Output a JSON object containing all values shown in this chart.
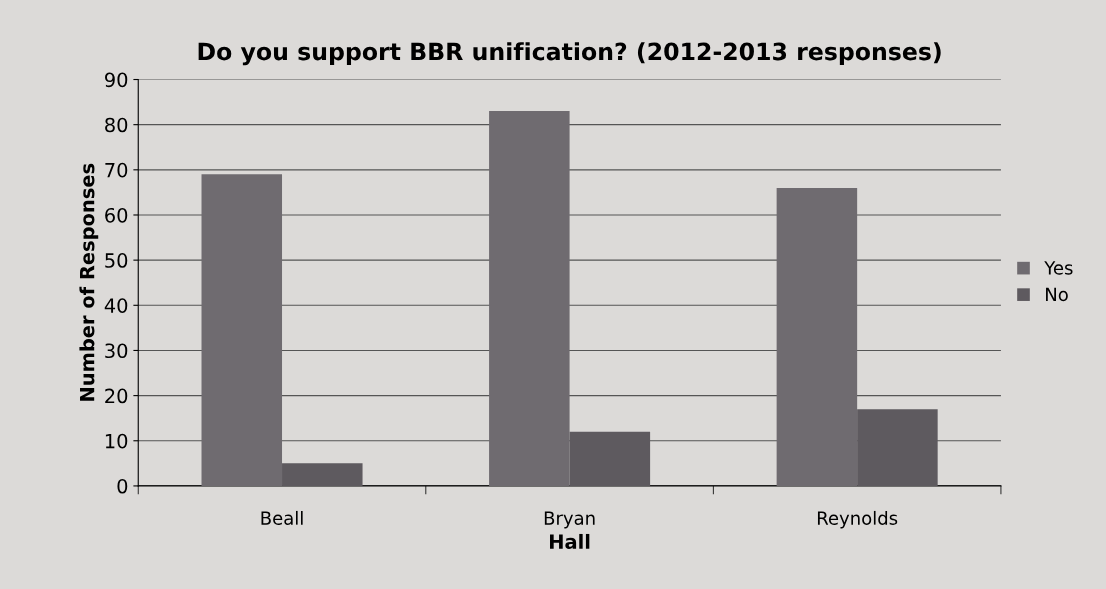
{
  "chart_data": {
    "type": "bar",
    "title": "Do you support BBR unification? (2012-2013 responses)",
    "xlabel": "Hall",
    "ylabel": "Number of Responses",
    "categories": [
      "Beall",
      "Bryan",
      "Reynolds"
    ],
    "series": [
      {
        "name": "Yes",
        "color": "#6f6b70",
        "values": [
          69,
          83,
          66
        ]
      },
      {
        "name": "No",
        "color": "#5e5a5f",
        "values": [
          5,
          12,
          17
        ]
      }
    ],
    "ylim": [
      0,
      90
    ],
    "yticks": [
      0,
      10,
      20,
      30,
      40,
      50,
      60,
      70,
      80,
      90
    ],
    "grid": "y",
    "legend": "right"
  }
}
